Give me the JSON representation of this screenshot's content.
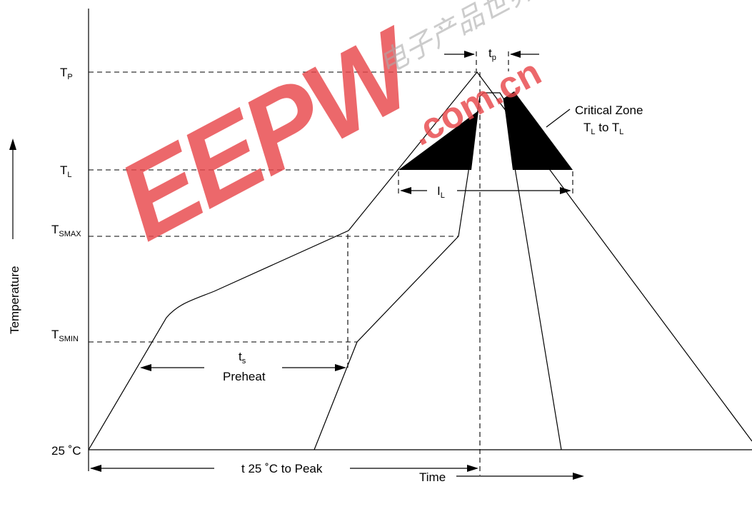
{
  "y_axis": {
    "title": "Temperature",
    "levels": [
      {
        "main": "T",
        "sub": "P"
      },
      {
        "main": "T",
        "sub": "L"
      },
      {
        "main": "T",
        "sub": "SMAX"
      },
      {
        "main": "T",
        "sub": "SMIN"
      },
      {
        "main": "25 ˚C",
        "sub": ""
      }
    ]
  },
  "x_axis": {
    "title": "Time"
  },
  "annotations": {
    "tp": {
      "main": "t",
      "sub": "p"
    },
    "il": {
      "main": "I",
      "sub": "L"
    },
    "ts": {
      "main": "t",
      "sub": "s"
    },
    "preheat": "Preheat",
    "t25_to_peak": "t 25 ˚C to Peak",
    "critical_zone_title": "Critical Zone",
    "critical_zone_range": {
      "a_main": "T",
      "a_sub": "L",
      "mid": " to ",
      "b_main": "T",
      "b_sub": "L"
    }
  },
  "watermark": {
    "text": "EEPW",
    "domain": ".com.cn",
    "chinese": "电子产品世界",
    "color": "#e8474b"
  }
}
